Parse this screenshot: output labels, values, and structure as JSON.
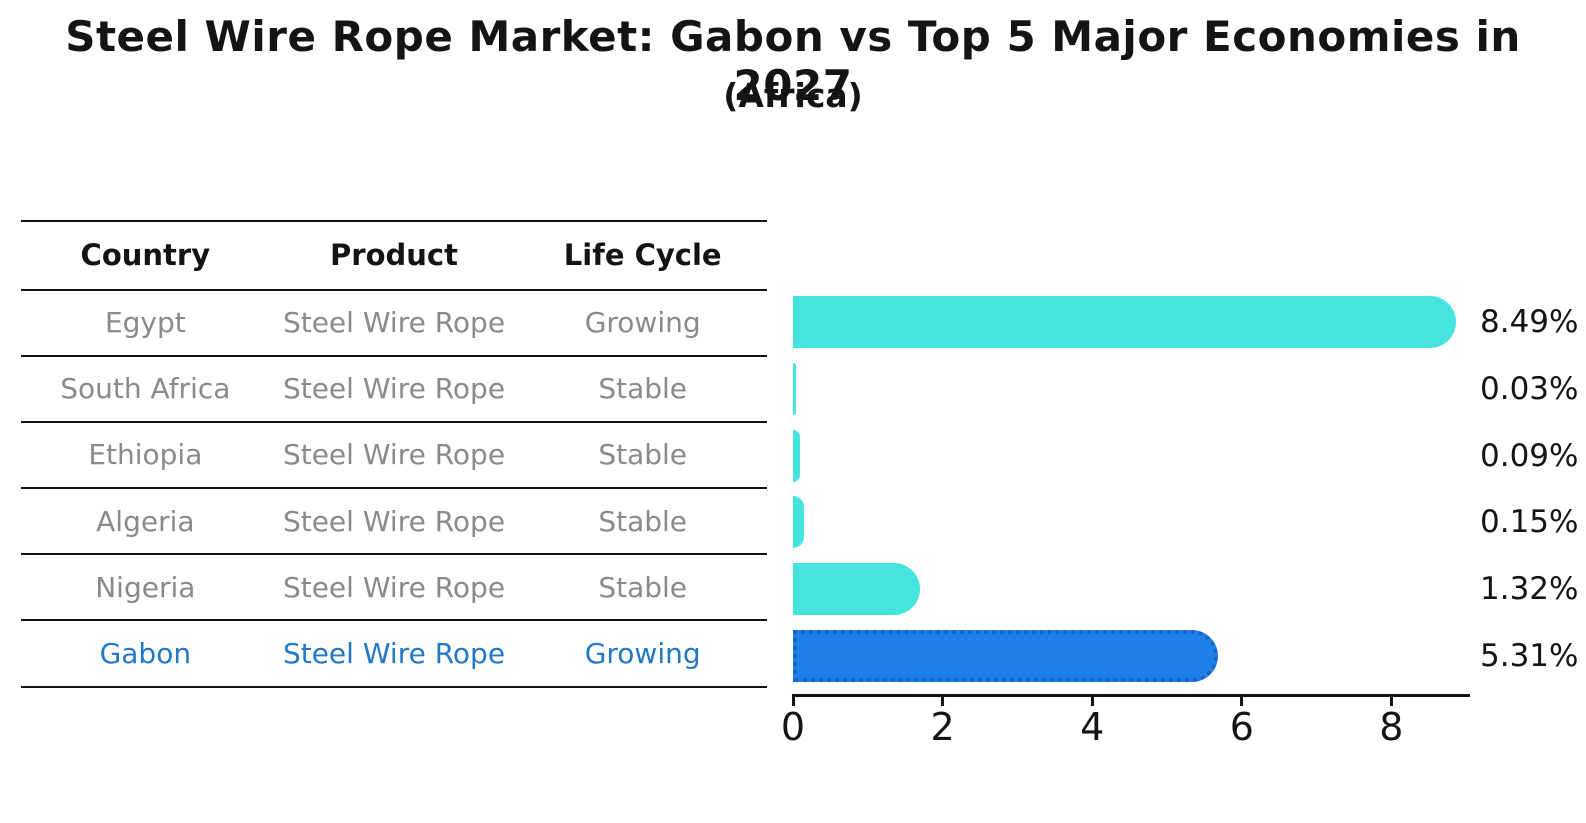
{
  "title": "Steel Wire Rope Market: Gabon vs Top 5 Major Economies in 2027",
  "subtitle": "(Africa)",
  "table": {
    "headers": [
      "Country",
      "Product",
      "Life Cycle"
    ],
    "rows": [
      {
        "country": "Egypt",
        "product": "Steel Wire Rope",
        "life_cycle": "Growing",
        "highlighted": false
      },
      {
        "country": "South Africa",
        "product": "Steel Wire Rope",
        "life_cycle": "Stable",
        "highlighted": false
      },
      {
        "country": "Ethiopia",
        "product": "Steel Wire Rope",
        "life_cycle": "Stable",
        "highlighted": false
      },
      {
        "country": "Algeria",
        "product": "Steel Wire Rope",
        "life_cycle": "Stable",
        "highlighted": false
      },
      {
        "country": "Nigeria",
        "product": "Steel Wire Rope",
        "life_cycle": "Stable",
        "highlighted": false
      },
      {
        "country": "Gabon",
        "product": "Steel Wire Rope",
        "life_cycle": "Growing",
        "highlighted": true
      }
    ]
  },
  "chart_data": {
    "type": "bar",
    "orientation": "horizontal",
    "title": "Steel Wire Rope Market: Gabon vs Top 5 Major Economies in 2027",
    "subtitle": "(Africa)",
    "categories": [
      "Egypt",
      "South Africa",
      "Ethiopia",
      "Algeria",
      "Nigeria",
      "Gabon"
    ],
    "values": [
      8.49,
      0.03,
      0.09,
      0.15,
      1.32,
      5.31
    ],
    "value_labels": [
      "8.49%",
      "0.03%",
      "0.09%",
      "0.15%",
      "1.32%",
      "5.31%"
    ],
    "x_ticks": [
      "0",
      "2",
      "4",
      "6",
      "8"
    ],
    "x_tick_values": [
      0,
      2,
      4,
      6,
      8
    ],
    "xlim": [
      0,
      9
    ],
    "grid": false,
    "legend": "none",
    "highlight_category": "Gabon",
    "highlight_index": 5
  },
  "colors": {
    "bar": "#45e4de",
    "highlight_bar": "#1e80e8",
    "highlight_edge": "#1563cb",
    "table_text": "#8a8a8a",
    "highlight_text": "#2178c6",
    "ink": "#141414"
  }
}
